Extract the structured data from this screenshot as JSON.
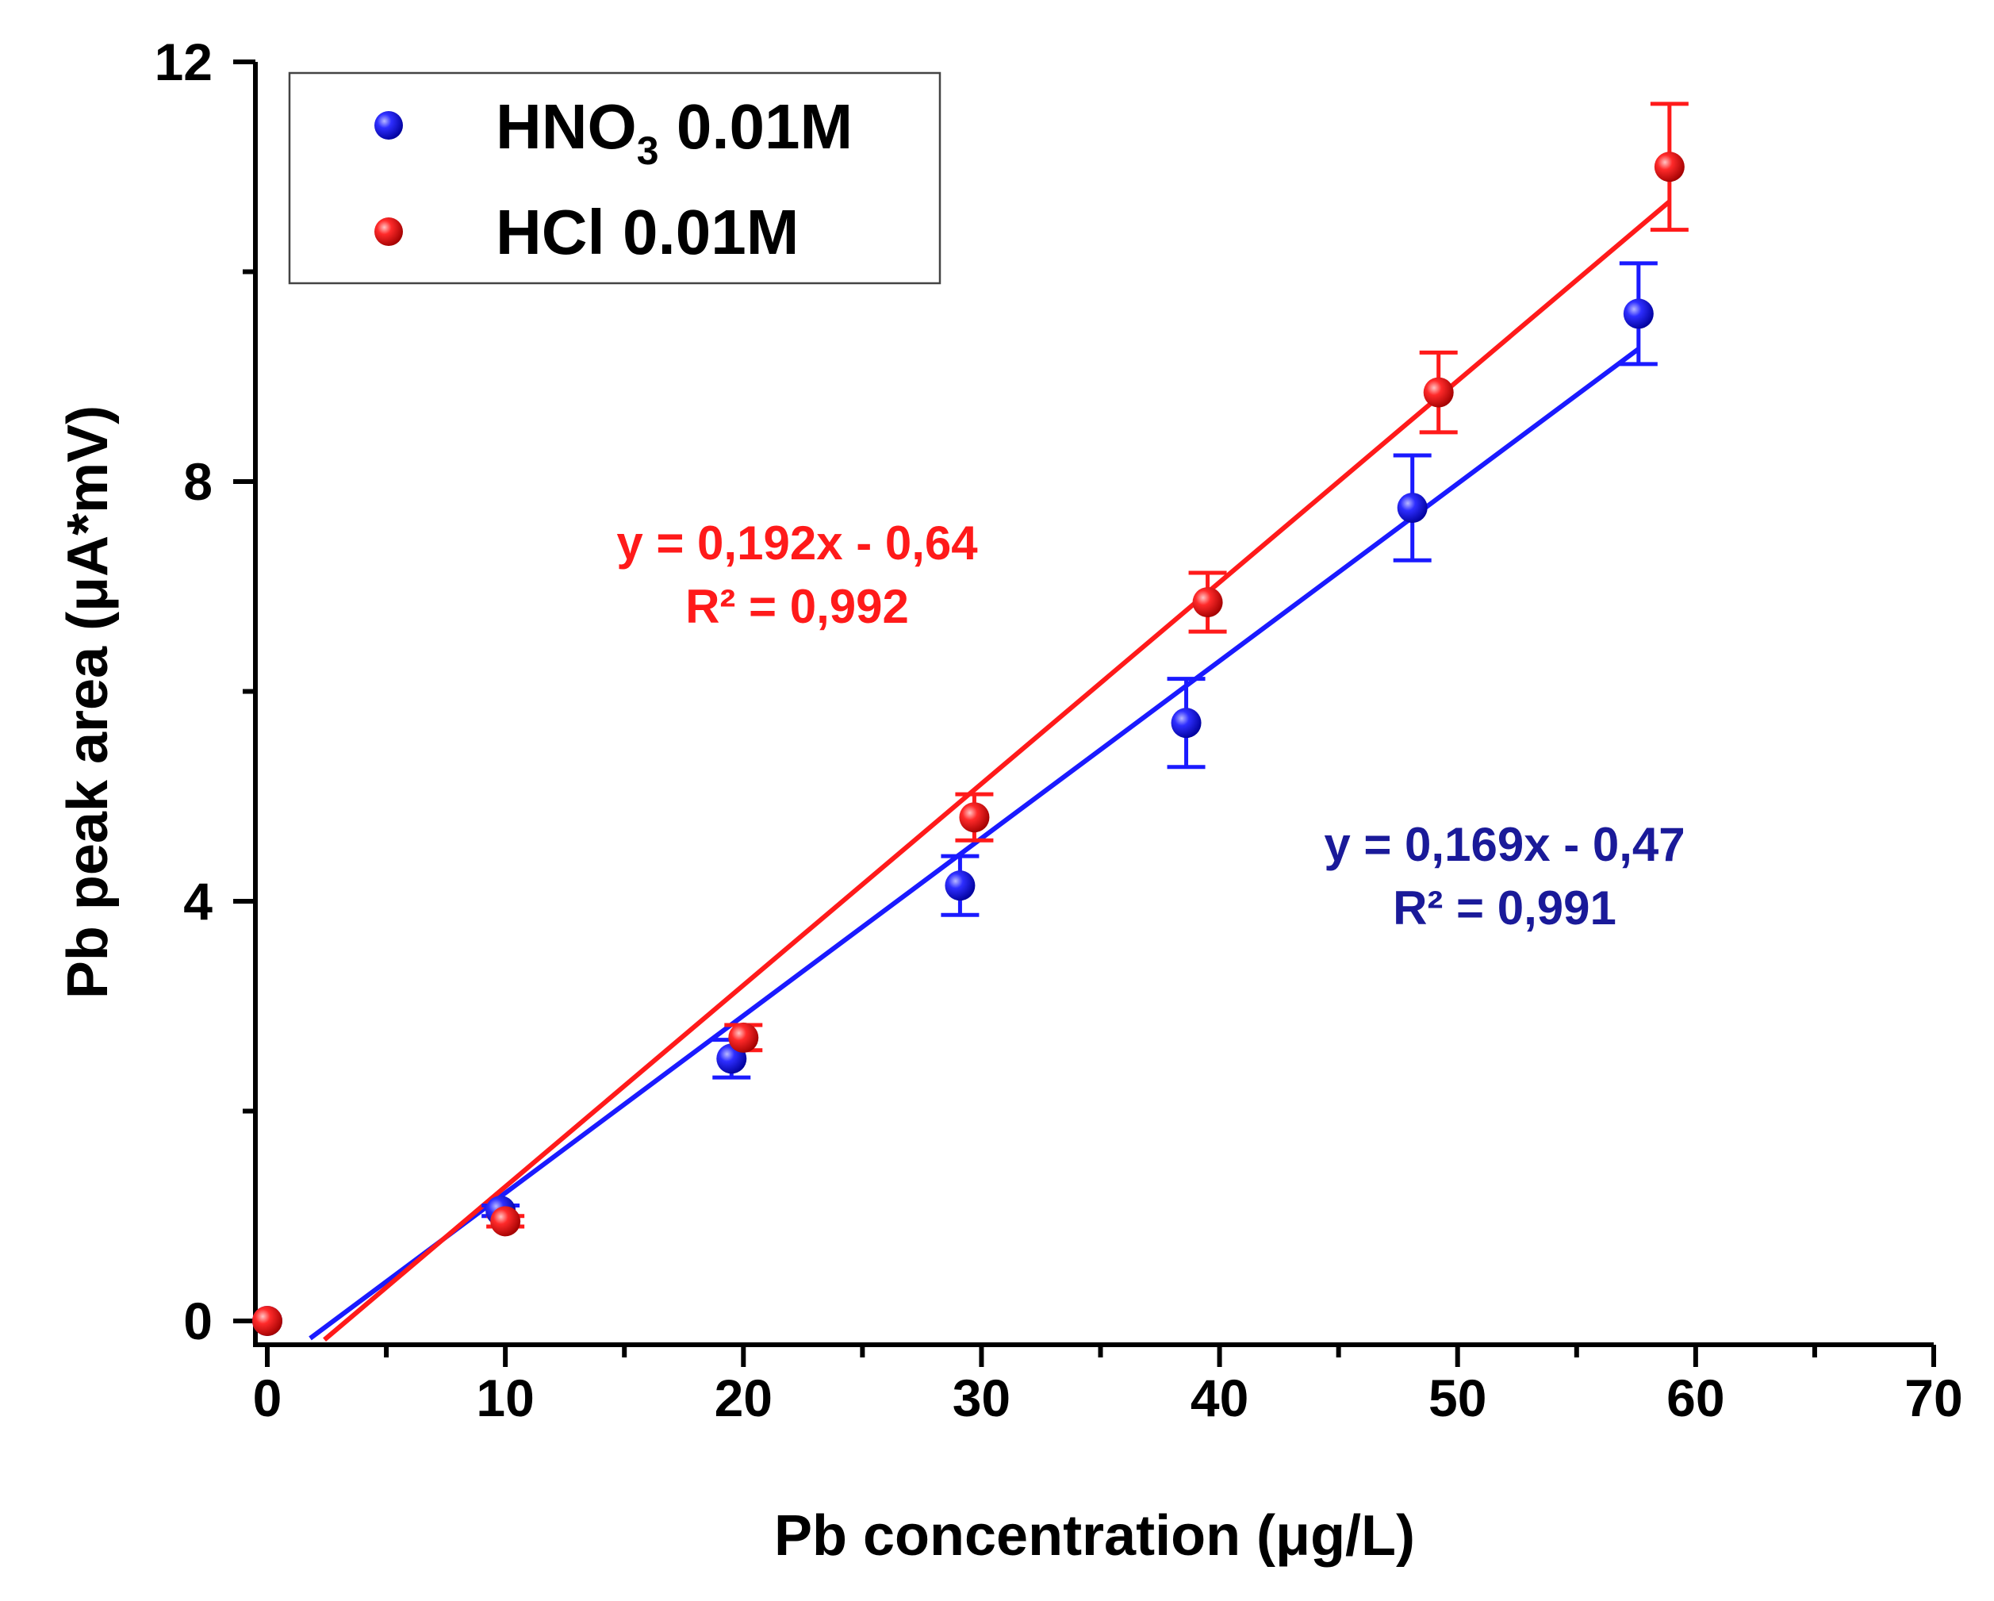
{
  "chart_data": {
    "type": "scatter",
    "xlabel": "Pb concentration (μg/L)",
    "ylabel": "Pb peak area (μA*mV)",
    "xlim": [
      0,
      70
    ],
    "ylim": [
      0,
      12
    ],
    "x_ticks": [
      0,
      10,
      20,
      30,
      40,
      50,
      60,
      70
    ],
    "x_tick_labels": [
      "0",
      "10",
      "20",
      "30",
      "40",
      "50",
      "60",
      "70"
    ],
    "y_ticks": [
      0,
      4,
      8,
      12
    ],
    "y_tick_labels": [
      "0",
      "4",
      "8",
      "12"
    ],
    "legend_position": "top-left",
    "series": [
      {
        "name": "HNO3 0.01M",
        "legend_main": "HNO",
        "legend_sub": "3",
        "legend_rest": " 0.01M",
        "color": "#1a1aff",
        "fit_color": "#1a1aff",
        "x": [
          0,
          9.8,
          19.5,
          29.1,
          38.6,
          48.1,
          57.6
        ],
        "y": [
          0,
          1.05,
          2.5,
          4.15,
          5.7,
          7.75,
          9.6
        ],
        "error": [
          0,
          0.05,
          0.18,
          0.28,
          0.42,
          0.5,
          0.48
        ],
        "fit": {
          "slope": 0.169,
          "intercept": -0.47,
          "x_range": [
            1.8,
            57.6
          ]
        },
        "equation": "y = 0,169x - 0,47",
        "r2_label": "R² = 0,991",
        "equation_color": "#1a1a99"
      },
      {
        "name": "HCl 0.01M",
        "legend_main": "HCl",
        "legend_sub": "",
        "legend_rest": " 0.01M",
        "color": "#ff1a1a",
        "fit_color": "#ff1a1a",
        "x": [
          0,
          10,
          20,
          29.7,
          39.5,
          49.2,
          58.9
        ],
        "y": [
          0,
          0.95,
          2.7,
          4.8,
          6.85,
          8.85,
          11.0
        ],
        "error": [
          0,
          0.05,
          0.12,
          0.22,
          0.28,
          0.38,
          0.6
        ],
        "fit": {
          "slope": 0.192,
          "intercept": -0.64,
          "x_range": [
            2.4,
            58.9
          ]
        },
        "equation": "y = 0,192x - 0,64",
        "r2_label": "R² = 0,992",
        "equation_color": "#ff1a1a"
      }
    ]
  }
}
